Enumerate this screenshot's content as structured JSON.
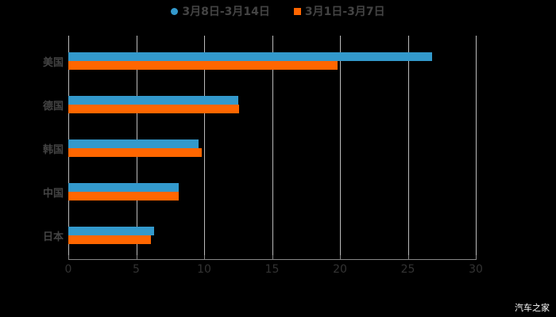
{
  "legend": [
    {
      "label": "3月8日-3月14日",
      "color": "#3399cc"
    },
    {
      "label": "3月1日-3月7日",
      "color": "#ff6600"
    }
  ],
  "watermark": "汽车之家",
  "chart_data": {
    "type": "bar",
    "orientation": "horizontal",
    "categories": [
      "美国",
      "德国",
      "韩国",
      "中国",
      "日本"
    ],
    "series": [
      {
        "name": "3月8日-3月14日",
        "color": "#3399cc",
        "values": [
          26.8,
          12.5,
          9.6,
          8.1,
          6.3
        ]
      },
      {
        "name": "3月1日-3月7日",
        "color": "#ff6600",
        "values": [
          19.8,
          12.6,
          9.8,
          8.1,
          6.1
        ]
      }
    ],
    "title": "",
    "xlabel": "",
    "ylabel": "",
    "xlim": [
      0,
      30
    ],
    "xticks": [
      "0",
      "5",
      "10",
      "15",
      "20",
      "25",
      "30"
    ],
    "grid": true,
    "legend_position": "top"
  }
}
